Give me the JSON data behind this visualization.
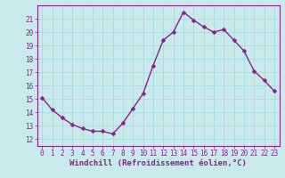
{
  "x": [
    0,
    1,
    2,
    3,
    4,
    5,
    6,
    7,
    8,
    9,
    10,
    11,
    12,
    13,
    14,
    15,
    16,
    17,
    18,
    19,
    20,
    21,
    22,
    23
  ],
  "y": [
    15.1,
    14.2,
    13.6,
    13.1,
    12.8,
    12.6,
    12.6,
    12.4,
    13.2,
    14.3,
    15.4,
    17.5,
    19.4,
    20.0,
    21.5,
    20.9,
    20.4,
    20.0,
    20.2,
    19.4,
    18.6,
    17.1,
    16.4,
    15.6
  ],
  "line_color": "#882288",
  "marker_color": "#882288",
  "bg_color": "#c8eaea",
  "grid_color": "#aadddd",
  "xlabel": "Windchill (Refroidissement éolien,°C)",
  "xlim": [
    -0.5,
    23.5
  ],
  "ylim": [
    11.5,
    22.0
  ],
  "yticks": [
    12,
    13,
    14,
    15,
    16,
    17,
    18,
    19,
    20,
    21
  ],
  "xticks": [
    0,
    1,
    2,
    3,
    4,
    5,
    6,
    7,
    8,
    9,
    10,
    11,
    12,
    13,
    14,
    15,
    16,
    17,
    18,
    19,
    20,
    21,
    22,
    23
  ],
  "tick_fontsize": 5.5,
  "xlabel_fontsize": 6.5,
  "marker_size": 2.5,
  "line_width": 1.0
}
